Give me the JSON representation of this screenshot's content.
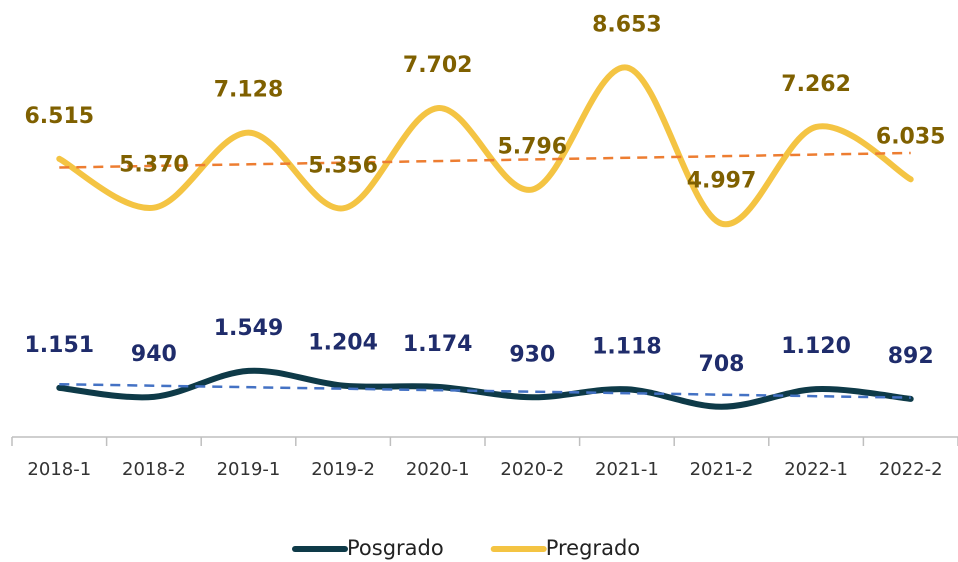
{
  "chart_data": {
    "type": "line",
    "smooth": true,
    "categories": [
      "2018-1",
      "2018-2",
      "2019-1",
      "2019-2",
      "2020-1",
      "2020-2",
      "2021-1",
      "2021-2",
      "2022-1",
      "2022-2"
    ],
    "ylim": [
      0,
      10000
    ],
    "trendline": true,
    "legend": "bottom",
    "series": [
      {
        "name": "Posgrado",
        "color": "#0e3a48",
        "trend_color": "#4472c4",
        "label_color": "#1f2c6b",
        "values": [
          1151,
          940,
          1549,
          1204,
          1174,
          930,
          1118,
          708,
          1120,
          892
        ],
        "value_labels": [
          "1.151",
          "940",
          "1.549",
          "1.204",
          "1.174",
          "930",
          "1.118",
          "708",
          "1.120",
          "892"
        ]
      },
      {
        "name": "Pregrado",
        "color": "#f4c443",
        "trend_color": "#ed7d31",
        "label_color": "#7f6000",
        "values": [
          6515,
          5370,
          7128,
          5356,
          7702,
          5796,
          8653,
          4997,
          7262,
          6035
        ],
        "value_labels": [
          "6.515",
          "5.370",
          "7.128",
          "5.356",
          "7.702",
          "5.796",
          "8.653",
          "4.997",
          "7.262",
          "6.035"
        ]
      }
    ]
  }
}
